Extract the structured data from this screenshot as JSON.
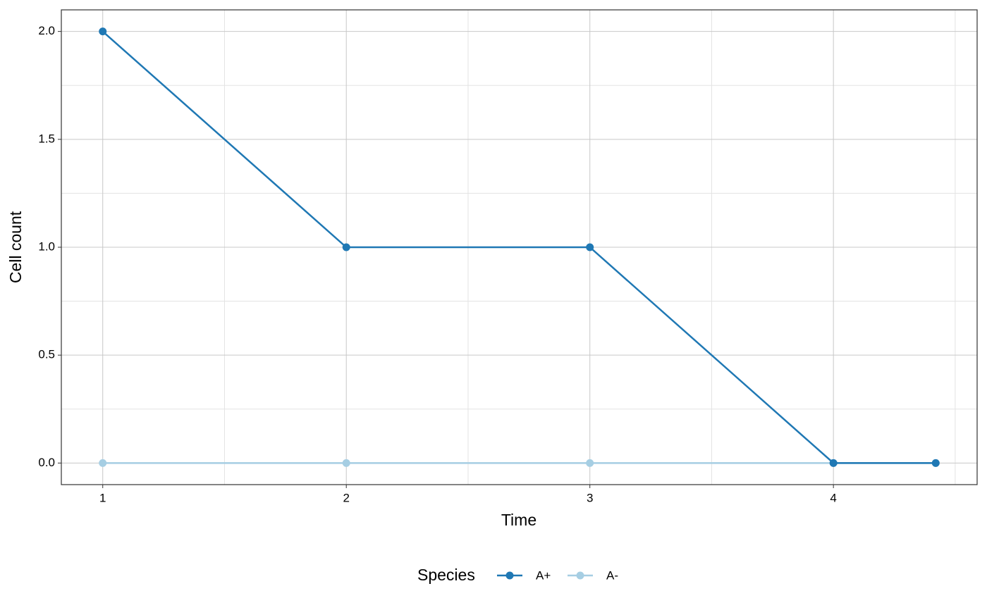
{
  "chart_data": {
    "type": "line",
    "x_label": "Time",
    "y_label": "Cell count",
    "legend_title": "Species",
    "legend_position": "bottom",
    "x": [
      1,
      2,
      3,
      4,
      4.42
    ],
    "series": [
      {
        "name": "A+",
        "color": "#1f78b4",
        "values": [
          2,
          1,
          1,
          0,
          0
        ]
      },
      {
        "name": "A-",
        "color": "#a6cee3",
        "values": [
          0,
          0,
          0,
          0,
          0
        ]
      }
    ],
    "xlim": [
      0.83,
      4.59
    ],
    "ylim": [
      -0.1,
      2.1
    ],
    "xticks": [
      1,
      2,
      3,
      4
    ],
    "yticks": [
      {
        "value": 0,
        "label": "0.0"
      },
      {
        "value": 0.5,
        "label": "0.5"
      },
      {
        "value": 1,
        "label": "1.0"
      },
      {
        "value": 1.5,
        "label": "1.5"
      },
      {
        "value": 2,
        "label": "2.0"
      }
    ],
    "grid": true
  }
}
